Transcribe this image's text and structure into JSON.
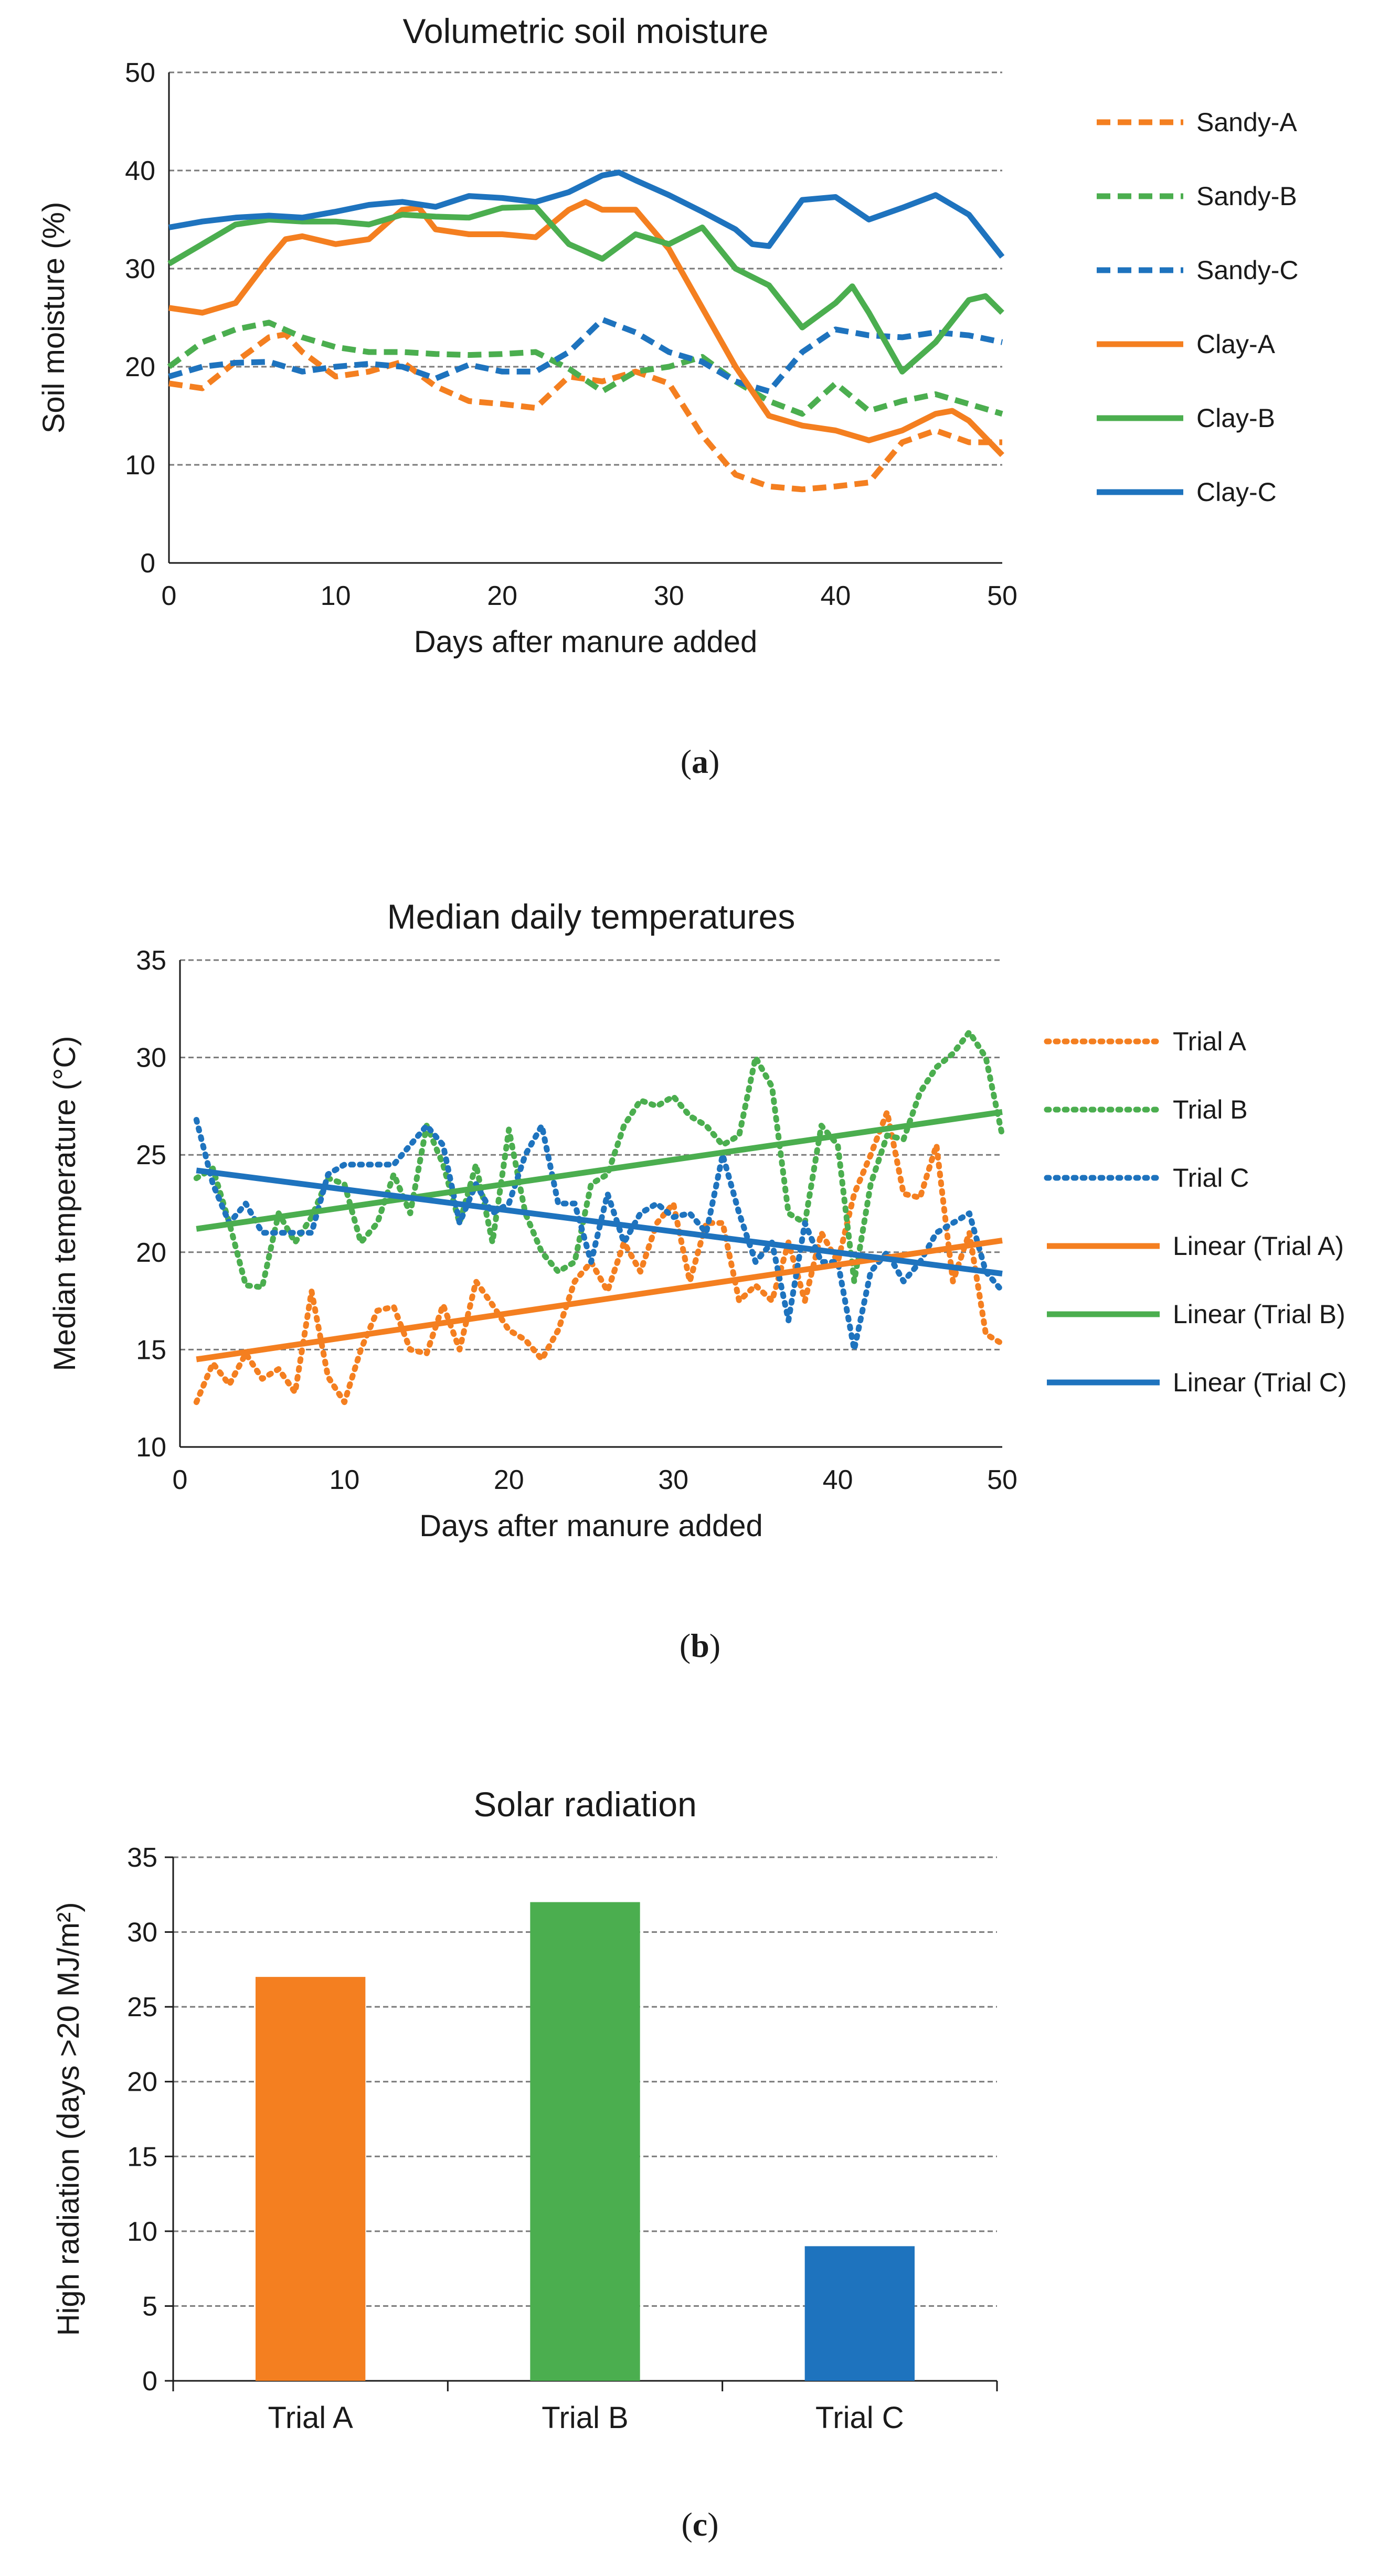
{
  "chart_data": [
    {
      "type": "line",
      "caption": "a",
      "title": "Volumetric soil moisture",
      "xlabel": "Days after manure added",
      "ylabel": "Soil moisture (%)",
      "xlim": [
        0,
        50
      ],
      "ylim": [
        0,
        50
      ],
      "xticks": [
        0,
        10,
        20,
        30,
        40,
        50
      ],
      "yticks": [
        0,
        10,
        20,
        30,
        40,
        50
      ],
      "grid": true,
      "legend": "right",
      "series": [
        {
          "name": "Sandy-A",
          "color": "#F47F20",
          "style": "dashed",
          "x": [
            0,
            2,
            4,
            6,
            7,
            8,
            10,
            12,
            14,
            16,
            18,
            20,
            22,
            24,
            26,
            28,
            30,
            32,
            34,
            36,
            38,
            40,
            42,
            44,
            46,
            48,
            50
          ],
          "y": [
            18.3,
            17.8,
            20.5,
            23,
            23.3,
            21.5,
            19,
            19.5,
            20.5,
            18,
            16.5,
            16.2,
            15.8,
            19,
            18.5,
            19.5,
            18.3,
            13,
            9,
            7.8,
            7.5,
            7.8,
            8.2,
            12.3,
            13.5,
            12.3,
            12.3
          ]
        },
        {
          "name": "Sandy-B",
          "color": "#4BAE4F",
          "style": "dashed",
          "x": [
            0,
            2,
            4,
            6,
            8,
            10,
            12,
            14,
            16,
            18,
            20,
            22,
            24,
            26,
            28,
            30,
            32,
            34,
            36,
            38,
            40,
            42,
            44,
            46,
            48,
            50
          ],
          "y": [
            20,
            22.5,
            23.8,
            24.5,
            23,
            22,
            21.5,
            21.5,
            21.3,
            21.2,
            21.3,
            21.5,
            19.8,
            17.5,
            19.5,
            20,
            21,
            18.5,
            16.5,
            15.2,
            18.3,
            15.5,
            16.5,
            17.2,
            16.2,
            15.2
          ]
        },
        {
          "name": "Sandy-C",
          "color": "#1E73BE",
          "style": "dashed",
          "x": [
            0,
            2,
            4,
            6,
            8,
            10,
            12,
            14,
            16,
            18,
            20,
            22,
            24,
            26,
            28,
            30,
            32,
            34,
            36,
            38,
            40,
            42,
            44,
            46,
            48,
            50
          ],
          "y": [
            19,
            20,
            20.4,
            20.5,
            19.5,
            20,
            20.3,
            20,
            18.8,
            20.2,
            19.5,
            19.5,
            21.5,
            24.8,
            23.5,
            21.5,
            20.5,
            18.5,
            17.5,
            21.5,
            23.8,
            23.2,
            23,
            23.5,
            23.2,
            22.5
          ]
        },
        {
          "name": "Clay-A",
          "color": "#F47F20",
          "style": "solid",
          "x": [
            0,
            2,
            4,
            6,
            7,
            8,
            10,
            12,
            14,
            15,
            16,
            18,
            20,
            22,
            24,
            25,
            26,
            28,
            30,
            32,
            34,
            36,
            38,
            40,
            42,
            44,
            46,
            47,
            48,
            50
          ],
          "y": [
            26,
            25.5,
            26.5,
            31,
            33,
            33.3,
            32.5,
            33,
            36,
            36.2,
            34,
            33.5,
            33.5,
            33.2,
            36,
            36.8,
            36,
            36,
            32,
            26,
            20,
            15,
            14,
            13.5,
            12.5,
            13.5,
            15.2,
            15.5,
            14.5,
            11
          ]
        },
        {
          "name": "Clay-B",
          "color": "#4BAE4F",
          "style": "solid",
          "x": [
            0,
            2,
            4,
            6,
            8,
            10,
            12,
            14,
            16,
            18,
            20,
            22,
            24,
            26,
            28,
            30,
            32,
            34,
            36,
            38,
            40,
            41,
            42,
            44,
            46,
            48,
            49,
            50
          ],
          "y": [
            30.5,
            32.5,
            34.5,
            35,
            34.8,
            34.8,
            34.5,
            35.5,
            35.3,
            35.2,
            36.2,
            36.3,
            32.5,
            31,
            33.5,
            32.5,
            34.2,
            30,
            28.3,
            24,
            26.5,
            28.2,
            25.5,
            19.5,
            22.5,
            26.8,
            27.2,
            25.5
          ]
        },
        {
          "name": "Clay-C",
          "color": "#1E73BE",
          "style": "solid",
          "x": [
            0,
            2,
            4,
            6,
            8,
            10,
            12,
            14,
            16,
            18,
            20,
            22,
            24,
            26,
            27,
            28,
            30,
            32,
            34,
            35,
            36,
            38,
            40,
            42,
            44,
            46,
            48,
            50
          ],
          "y": [
            34.2,
            34.8,
            35.2,
            35.4,
            35.2,
            35.8,
            36.5,
            36.8,
            36.3,
            37.4,
            37.2,
            36.8,
            37.8,
            39.5,
            39.8,
            39,
            37.5,
            35.8,
            34,
            32.5,
            32.3,
            37,
            37.3,
            35,
            36.2,
            37.5,
            35.5,
            31.2
          ]
        }
      ]
    },
    {
      "type": "line",
      "caption": "b",
      "title": "Median daily temperatures",
      "xlabel": "Days after manure added",
      "ylabel": "Median temperature (°C)",
      "xlim": [
        0,
        50
      ],
      "ylim": [
        10,
        35
      ],
      "xticks": [
        0,
        10,
        20,
        30,
        40,
        50
      ],
      "yticks": [
        10,
        15,
        20,
        25,
        30,
        35
      ],
      "grid": true,
      "legend": "right",
      "series": [
        {
          "name": "Trial A",
          "color": "#F47F20",
          "style": "dotted",
          "x": [
            1,
            2,
            3,
            4,
            5,
            6,
            7,
            8,
            9,
            10,
            11,
            12,
            13,
            14,
            15,
            16,
            17,
            18,
            19,
            20,
            21,
            22,
            23,
            24,
            25,
            26,
            27,
            28,
            29,
            30,
            31,
            32,
            33,
            34,
            35,
            36,
            37,
            38,
            39,
            40,
            41,
            42,
            43,
            44,
            45,
            46,
            47,
            48,
            49,
            50
          ],
          "y": [
            12.3,
            14.3,
            13.2,
            14.8,
            13.5,
            14,
            12.8,
            18,
            13.6,
            12.3,
            15,
            17,
            17.2,
            15,
            14.8,
            17.3,
            15,
            18.5,
            17.3,
            16,
            15.5,
            14.5,
            16,
            18.5,
            19.5,
            18,
            20.5,
            19,
            21.5,
            22.5,
            18.5,
            21.5,
            21.5,
            17.5,
            18.3,
            17.5,
            20.5,
            17.5,
            21,
            19.5,
            23,
            25,
            27.2,
            23,
            22.8,
            25.5,
            18.5,
            21,
            15.8,
            15.3
          ]
        },
        {
          "name": "Trial B",
          "color": "#4BAE4F",
          "style": "dotted",
          "x": [
            1,
            2,
            3,
            4,
            5,
            6,
            7,
            8,
            9,
            10,
            11,
            12,
            13,
            14,
            15,
            16,
            17,
            18,
            19,
            20,
            21,
            22,
            23,
            24,
            25,
            26,
            27,
            28,
            29,
            30,
            31,
            32,
            33,
            34,
            35,
            36,
            37,
            38,
            39,
            40,
            41,
            42,
            43,
            44,
            45,
            46,
            47,
            48,
            49,
            50
          ],
          "y": [
            23.8,
            24.3,
            21.5,
            18.3,
            18.2,
            22,
            20.5,
            21.8,
            23.8,
            23.5,
            20.5,
            21.5,
            24,
            22,
            26.5,
            24.5,
            21.5,
            24.5,
            20.5,
            26.3,
            22,
            20,
            19,
            19.5,
            23.5,
            24,
            26.5,
            27.8,
            27.5,
            28,
            27,
            26.5,
            25.5,
            26,
            30,
            28.5,
            22,
            21.5,
            26.5,
            25.5,
            18.5,
            23.5,
            26,
            25.8,
            28.2,
            29.5,
            30.2,
            31.3,
            30,
            26
          ]
        },
        {
          "name": "Trial C",
          "color": "#1E73BE",
          "style": "dotted",
          "x": [
            1,
            2,
            3,
            4,
            5,
            6,
            7,
            8,
            9,
            10,
            11,
            12,
            13,
            14,
            15,
            16,
            17,
            18,
            19,
            20,
            21,
            22,
            23,
            24,
            25,
            26,
            27,
            28,
            29,
            30,
            31,
            32,
            33,
            34,
            35,
            36,
            37,
            38,
            39,
            40,
            41,
            42,
            43,
            44,
            45,
            46,
            47,
            48,
            49,
            50
          ],
          "y": [
            26.8,
            23.5,
            21.5,
            22.5,
            21,
            21,
            21,
            21,
            24,
            24.5,
            24.5,
            24.5,
            24.5,
            25.5,
            26.5,
            25.5,
            21.5,
            23.5,
            22,
            22.5,
            25,
            26.5,
            22.5,
            22.5,
            19.5,
            23,
            20.5,
            22,
            22.5,
            21.8,
            22,
            21,
            25,
            22,
            19.5,
            20.5,
            16.5,
            21.5,
            19.5,
            19.5,
            15,
            19,
            20,
            18.5,
            19.5,
            21,
            21.5,
            22,
            19,
            18
          ]
        },
        {
          "name": "Linear (Trial A)",
          "color": "#F47F20",
          "style": "solid",
          "x": [
            1,
            50
          ],
          "y": [
            14.5,
            20.6
          ]
        },
        {
          "name": "Linear (Trial B)",
          "color": "#4BAE4F",
          "style": "solid",
          "x": [
            1,
            50
          ],
          "y": [
            21.2,
            27.2
          ]
        },
        {
          "name": "Linear (Trial C)",
          "color": "#1E73BE",
          "style": "solid",
          "x": [
            1,
            50
          ],
          "y": [
            24.2,
            18.9
          ]
        }
      ]
    },
    {
      "type": "bar",
      "caption": "c",
      "title": "Solar radiation",
      "xlabel": "",
      "ylabel": "High radiation (days >20 MJ/m²)",
      "ylim": [
        0,
        35
      ],
      "yticks": [
        0,
        5,
        10,
        15,
        20,
        25,
        30,
        35
      ],
      "grid": true,
      "categories": [
        "Trial A",
        "Trial B",
        "Trial C"
      ],
      "values": [
        27,
        32,
        9
      ],
      "colors": [
        "#F47F20",
        "#4BAE4F",
        "#1E73BE"
      ]
    }
  ]
}
